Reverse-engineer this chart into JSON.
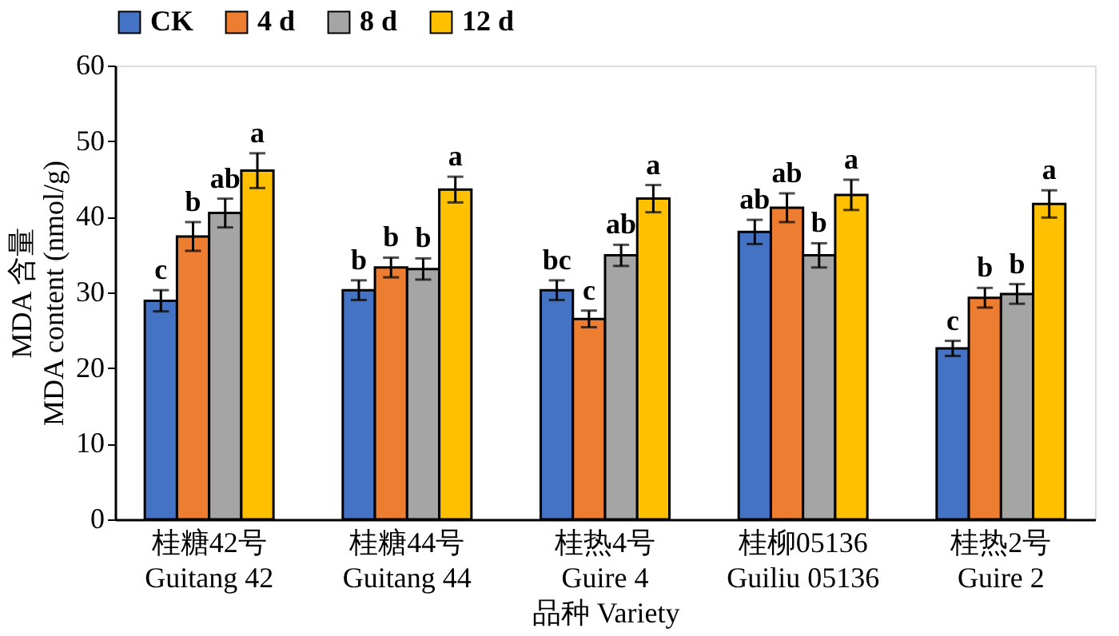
{
  "chart_data": {
    "type": "bar",
    "categories": [
      "桂糖42号\nGuitang 42",
      "桂糖44号\nGuitang 44",
      "桂热4号\nGuire 4",
      "桂柳05136\nGuiliu 05136",
      "桂热2号\nGuire 2"
    ],
    "xlabel": "品种 Variety",
    "ylabel": "MDA 含量\nMDA content (nmol/g)",
    "ylim": [
      0,
      60
    ],
    "yticks": [
      0,
      10,
      20,
      30,
      40,
      50,
      60
    ],
    "grid": false,
    "legend": "top",
    "series": [
      {
        "name": "CK",
        "color": "#4472c4",
        "values": [
          28.9,
          30.3,
          30.3,
          38.0,
          22.6
        ],
        "errors": [
          1.4,
          1.3,
          1.3,
          1.6,
          1.0
        ],
        "value_labels": [
          "c",
          "b",
          "bc",
          "ab",
          "c"
        ]
      },
      {
        "name": "4 d",
        "color": "#ed7d31",
        "values": [
          37.4,
          33.3,
          26.5,
          41.2,
          29.3
        ],
        "errors": [
          1.9,
          1.3,
          1.1,
          1.9,
          1.3
        ],
        "value_labels": [
          "b",
          "b",
          "c",
          "ab",
          "b"
        ]
      },
      {
        "name": "8 d",
        "color": "#a5a5a5",
        "values": [
          40.5,
          33.1,
          34.9,
          34.9,
          29.8
        ],
        "errors": [
          1.9,
          1.4,
          1.4,
          1.6,
          1.3
        ],
        "value_labels": [
          "ab",
          "b",
          "ab",
          "b",
          "b"
        ]
      },
      {
        "name": "12 d",
        "color": "#ffc000",
        "values": [
          46.1,
          43.6,
          42.4,
          42.9,
          41.7
        ],
        "errors": [
          2.3,
          1.7,
          1.8,
          2.0,
          1.8
        ],
        "value_labels": [
          "a",
          "a",
          "a",
          "a",
          "a"
        ]
      }
    ]
  }
}
